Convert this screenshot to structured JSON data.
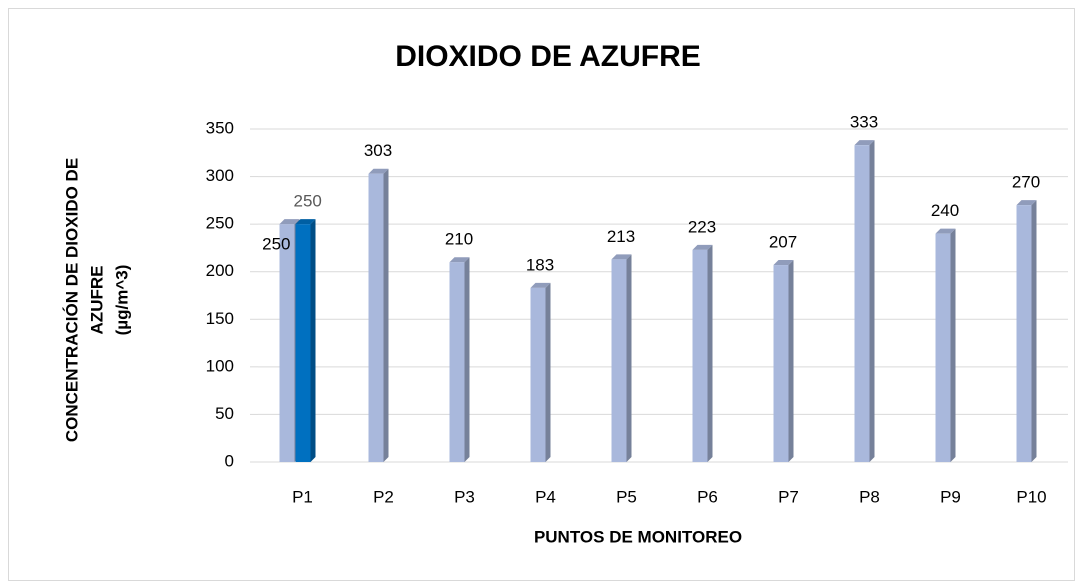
{
  "chart_data": {
    "type": "bar",
    "title": "DIOXIDO DE AZUFRE",
    "xlabel": "PUNTOS DE MONITOREO",
    "ylabel": [
      "CONCENTRACIÓN DE DIOXIDO DE",
      "AZUFRE",
      "(µg/m^3)"
    ],
    "categories": [
      "P1",
      "P2",
      "P3",
      "P4",
      "P5",
      "P6",
      "P7",
      "P8",
      "P9",
      "P10"
    ],
    "series": [
      {
        "color": "#a9b8dc",
        "values": [
          250,
          303,
          210,
          183,
          213,
          223,
          207,
          333,
          240,
          270
        ]
      },
      {
        "color": "#0070c0",
        "values": [
          250,
          null,
          null,
          null,
          null,
          null,
          null,
          null,
          null,
          null
        ]
      }
    ],
    "ylim": [
      0,
      350
    ],
    "yticks": [
      0,
      50,
      100,
      150,
      200,
      250,
      300,
      350
    ],
    "grid": true
  }
}
